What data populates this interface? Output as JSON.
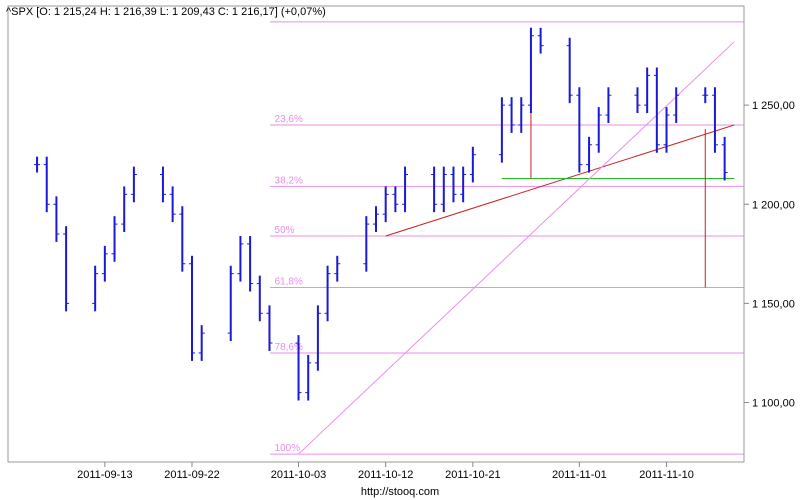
{
  "header": {
    "text": "^SPX [O: 1 215,24  H: 1 216,39  L: 1 209,43  C: 1 216,17] (+0,07%)"
  },
  "footer": {
    "source": "http://stooq.com"
  },
  "colors": {
    "up": "#1a1ad6",
    "fib": "#e98ee9",
    "trend": "#cc2020",
    "support": "#22bb22",
    "diag": "#e98ee9",
    "frame": "#9a9a9a",
    "grid": "#d8d8d8"
  },
  "chart_data": {
    "type": "candlestick",
    "title": "^SPX",
    "ylim": [
      1070,
      1300
    ],
    "y_ticks": [
      {
        "value": 1100,
        "label": "1 100,00"
      },
      {
        "value": 1150,
        "label": "1 150,00"
      },
      {
        "value": 1200,
        "label": "1 200,00"
      },
      {
        "value": 1250,
        "label": "1 250,00"
      }
    ],
    "x_ticks": [
      "2011-09-13",
      "2011-09-22",
      "2011-10-03",
      "2011-10-12",
      "2011-10-21",
      "2011-11-01",
      "2011-11-10"
    ],
    "fibonacci": [
      {
        "label": "",
        "value": 1292
      },
      {
        "label": "23,6%",
        "value": 1240
      },
      {
        "label": "38,2%",
        "value": 1209
      },
      {
        "label": "50%",
        "value": 1184
      },
      {
        "label": "61,8%",
        "value": 1158
      },
      {
        "label": "78,6%",
        "value": 1125
      },
      {
        "label": "100%",
        "value": 1074
      }
    ],
    "series": [
      {
        "x": [
          "2011-09-06",
          "2011-09-07",
          "2011-09-08",
          "2011-09-09",
          "2011-09-12",
          "2011-09-13",
          "2011-09-14",
          "2011-09-15",
          "2011-09-16",
          "2011-09-19",
          "2011-09-20",
          "2011-09-21",
          "2011-09-22",
          "2011-09-23",
          "2011-09-26",
          "2011-09-27",
          "2011-09-28",
          "2011-09-29",
          "2011-09-30",
          "2011-10-03",
          "2011-10-04",
          "2011-10-05",
          "2011-10-06",
          "2011-10-07",
          "2011-10-10",
          "2011-10-11",
          "2011-10-12",
          "2011-10-13",
          "2011-10-14",
          "2011-10-17",
          "2011-10-18",
          "2011-10-19",
          "2011-10-20",
          "2011-10-21",
          "2011-10-24",
          "2011-10-25",
          "2011-10-26",
          "2011-10-27",
          "2011-10-28",
          "2011-10-31",
          "2011-11-01",
          "2011-11-02",
          "2011-11-03",
          "2011-11-04",
          "2011-11-07",
          "2011-11-08",
          "2011-11-09",
          "2011-11-10",
          "2011-11-11",
          "2011-11-14",
          "2011-11-15",
          "2011-11-16"
        ],
        "close": [
          1220,
          1200,
          1185,
          1150,
          1165,
          1175,
          1190,
          1205,
          1215,
          1205,
          1195,
          1170,
          1125,
          1135,
          1165,
          1180,
          1160,
          1145,
          1130,
          1105,
          1120,
          1145,
          1165,
          1170,
          1190,
          1195,
          1205,
          1200,
          1215,
          1200,
          1215,
          1205,
          1215,
          1225,
          1250,
          1240,
          1250,
          1285,
          1280,
          1255,
          1220,
          1230,
          1245,
          1255,
          1250,
          1265,
          1230,
          1245,
          1255,
          1255,
          1230,
          1216
        ]
      }
    ],
    "annotations": [
      {
        "type": "trendline",
        "from": [
          "2011-10-12",
          1184
        ],
        "to": [
          "2011-11-17",
          1240
        ]
      },
      {
        "type": "support",
        "from": [
          "2011-10-24",
          1213
        ],
        "to": [
          "2011-11-17",
          1213
        ]
      },
      {
        "type": "diagonal",
        "from": [
          "2011-10-03",
          1074
        ],
        "to": [
          "2011-11-17",
          1282
        ]
      }
    ]
  }
}
